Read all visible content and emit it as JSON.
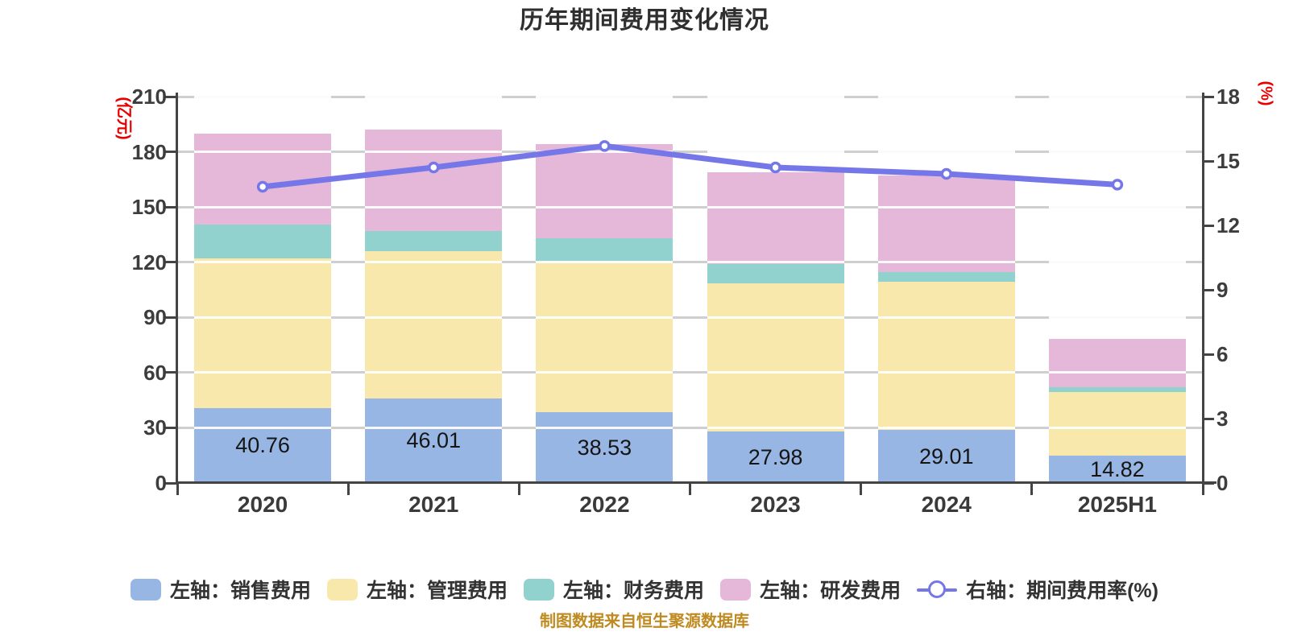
{
  "title": "历年期间费用变化情况",
  "footer": "制图数据来自恒生聚源数据库",
  "colors": {
    "sales_bar": "#98b6e3",
    "management_bar": "#f8e8ab",
    "finance_bar": "#92d2ce",
    "rnd_bar": "#e5b8d9",
    "rate_line": "#7577e8",
    "axis": "#444444",
    "axis_name_red": "#e60000",
    "footer_text": "#bf8a1f",
    "gridline": "#cfcfcf"
  },
  "chart_data": {
    "type": "bar",
    "subtype": "stacked-bar-with-line",
    "categories": [
      "2020",
      "2021",
      "2022",
      "2023",
      "2024",
      "2025H1"
    ],
    "series": [
      {
        "name": "左轴：销售费用",
        "type": "bar",
        "axis": "left",
        "color": "#98b6e3",
        "values": [
          40.76,
          46.01,
          38.53,
          27.98,
          29.01,
          14.82
        ]
      },
      {
        "name": "左轴：管理费用",
        "type": "bar",
        "axis": "left",
        "color": "#f8e8ab",
        "values": [
          81.5,
          80.1,
          81.7,
          80.5,
          80.4,
          34.4
        ]
      },
      {
        "name": "左轴：财务费用",
        "type": "bar",
        "axis": "left",
        "color": "#92d2ce",
        "values": [
          18.3,
          11.0,
          12.8,
          10.5,
          5.2,
          2.7
        ]
      },
      {
        "name": "左轴：研发费用",
        "type": "bar",
        "axis": "left",
        "color": "#e5b8d9",
        "values": [
          49.5,
          54.8,
          51.1,
          49.8,
          52.4,
          26.3
        ]
      },
      {
        "name": "右轴：期间费用率(%)",
        "type": "line",
        "axis": "right",
        "color": "#7577e8",
        "values": [
          13.8,
          14.7,
          15.7,
          14.7,
          14.4,
          13.9
        ]
      }
    ],
    "bar_labels": [
      "40.76",
      "46.01",
      "38.53",
      "27.98",
      "29.01",
      "14.82"
    ],
    "left_axis": {
      "name": "(亿元)",
      "min": 0,
      "max": 210,
      "step": 30
    },
    "right_axis": {
      "name": "(%)",
      "min": 0,
      "max": 18,
      "step": 3
    },
    "grid": true,
    "legend_position": "bottom"
  }
}
